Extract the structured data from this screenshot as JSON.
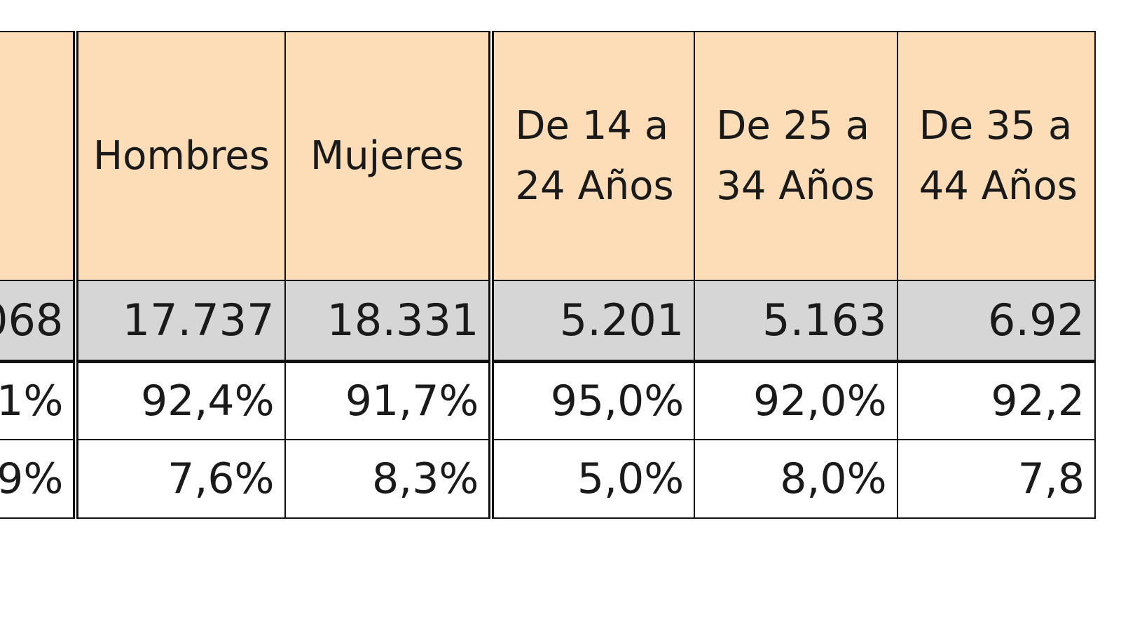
{
  "table": {
    "headers": [
      "",
      "Hombres",
      "Mujeres",
      "De 14 a 24 Años",
      "De 25 a 34 Años",
      "De 35 a 44 Años"
    ],
    "rows": [
      {
        "type": "total",
        "cells": [
          "068",
          "17.737",
          "18.331",
          "5.201",
          "5.163",
          "6.92"
        ]
      },
      {
        "type": "pct",
        "cells": [
          "1%",
          "92,4%",
          "91,7%",
          "95,0%",
          "92,0%",
          "92,2"
        ]
      },
      {
        "type": "pct",
        "cells": [
          "9%",
          "7,6%",
          "8,3%",
          "5,0%",
          "8,0%",
          "7,8"
        ]
      }
    ]
  },
  "colors": {
    "header_fill": "#fddcb8",
    "total_row_fill": "#d6d6d6",
    "body_fill": "#ffffff",
    "border": "#111111"
  }
}
